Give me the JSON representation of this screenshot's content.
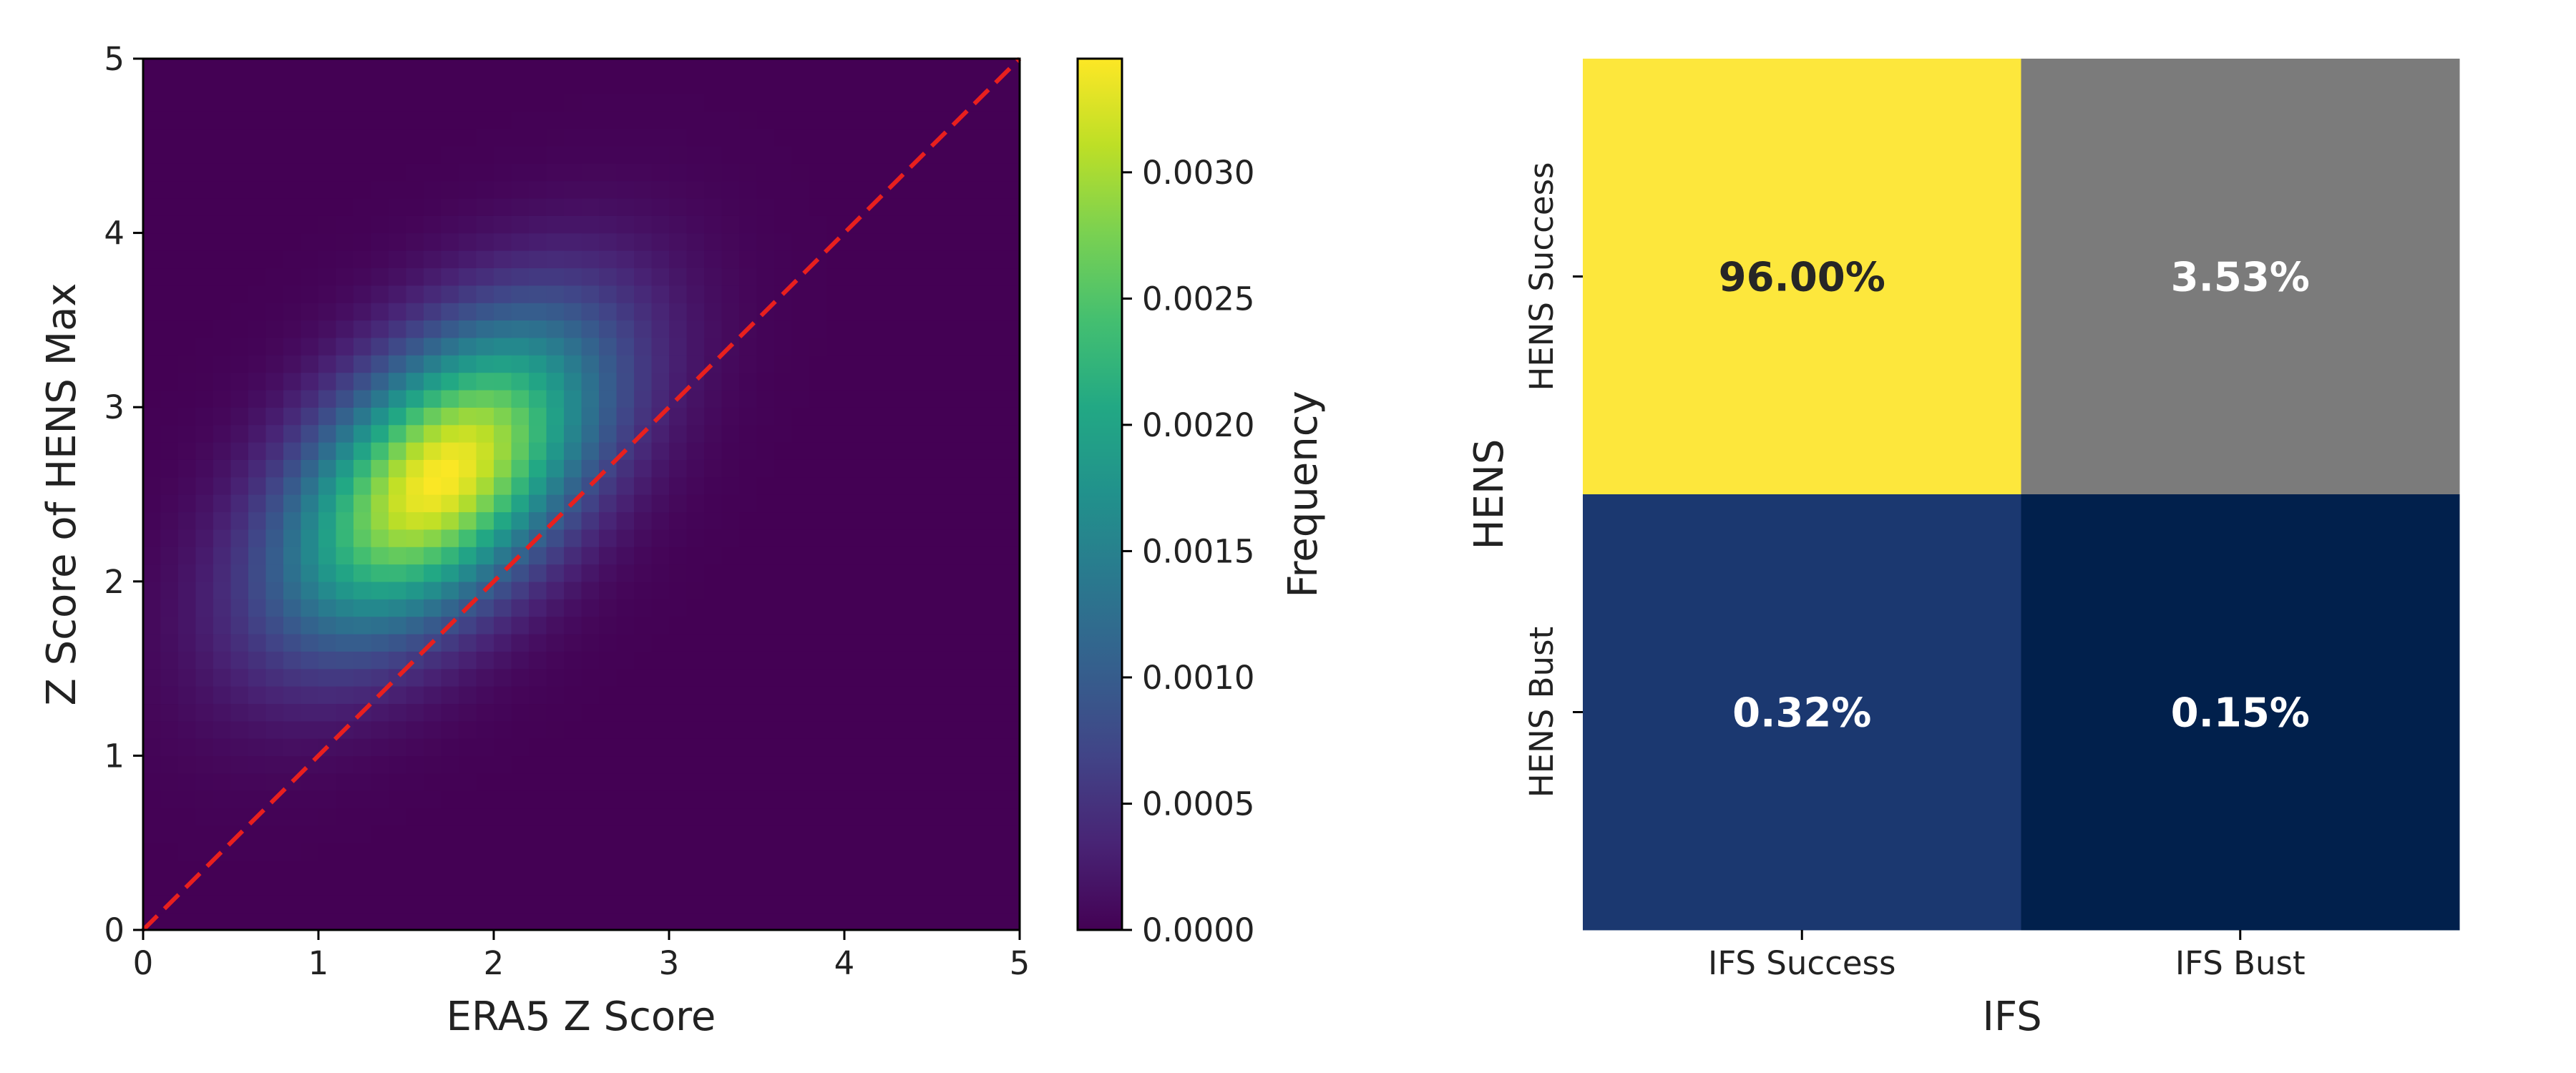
{
  "chart_data": [
    {
      "type": "heatmap",
      "description_kind": "2D density histogram",
      "xlabel": "ERA5 Z Score",
      "ylabel": "Z Score of HENS Max",
      "xlim": [
        0,
        5
      ],
      "ylim": [
        0,
        5
      ],
      "xticks": [
        "0",
        "1",
        "2",
        "3",
        "4",
        "5"
      ],
      "yticks": [
        "0",
        "1",
        "2",
        "3",
        "4",
        "5"
      ],
      "bins": 50,
      "density_model": {
        "peak_x": 1.7,
        "peak_y": 2.6,
        "sigma_major": 0.75,
        "sigma_minor": 0.42,
        "orientation_deg": 45,
        "peak_value": 0.00345
      },
      "reference_line": {
        "from": [
          0,
          0
        ],
        "to": [
          5,
          5
        ],
        "style": "dashed",
        "color": "#e8201e"
      },
      "colormap": "viridis",
      "colorbar": {
        "label": "Frequency",
        "range": [
          0.0,
          0.00345
        ],
        "ticks": [
          "0.0000",
          "0.0005",
          "0.0010",
          "0.0015",
          "0.0020",
          "0.0025",
          "0.0030"
        ],
        "tick_values": [
          0.0,
          0.0005,
          0.001,
          0.0015,
          0.002,
          0.0025,
          0.003
        ]
      }
    },
    {
      "type": "heatmap",
      "description_kind": "confusion matrix",
      "xlabel": "IFS",
      "ylabel": "HENS",
      "x_categories": [
        "IFS Success",
        "IFS Bust"
      ],
      "y_categories": [
        "HENS Success",
        "HENS Bust"
      ],
      "values": [
        [
          96.0,
          3.53
        ],
        [
          0.32,
          0.15
        ]
      ],
      "labels": [
        [
          "96.00%",
          "3.53%"
        ],
        [
          "0.32%",
          "0.15%"
        ]
      ],
      "cell_colors": [
        [
          "#fde73c",
          "#7b7b7b"
        ],
        [
          "#1b3870",
          "#01204c"
        ]
      ],
      "label_colors": [
        [
          "#262626",
          "#ffffff"
        ],
        [
          "#ffffff",
          "#ffffff"
        ]
      ]
    }
  ]
}
